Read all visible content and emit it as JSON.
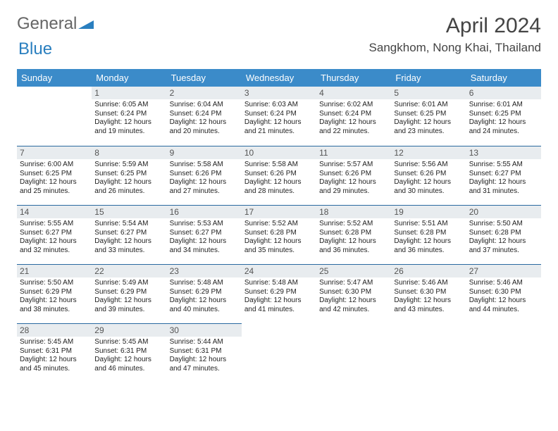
{
  "logo": {
    "part1": "General",
    "part2": "Blue"
  },
  "title": "April 2024",
  "location": "Sangkhom, Nong Khai, Thailand",
  "colors": {
    "header_bg": "#3b8bc9",
    "header_text": "#ffffff",
    "daynum_bg": "#e8ecef",
    "row_border": "#2a6aa0",
    "logo_blue": "#2a7fbf"
  },
  "weekdays": [
    "Sunday",
    "Monday",
    "Tuesday",
    "Wednesday",
    "Thursday",
    "Friday",
    "Saturday"
  ],
  "weeks": [
    [
      null,
      {
        "d": "1",
        "sr": "6:05 AM",
        "ss": "6:24 PM",
        "dl": "12 hours and 19 minutes."
      },
      {
        "d": "2",
        "sr": "6:04 AM",
        "ss": "6:24 PM",
        "dl": "12 hours and 20 minutes."
      },
      {
        "d": "3",
        "sr": "6:03 AM",
        "ss": "6:24 PM",
        "dl": "12 hours and 21 minutes."
      },
      {
        "d": "4",
        "sr": "6:02 AM",
        "ss": "6:24 PM",
        "dl": "12 hours and 22 minutes."
      },
      {
        "d": "5",
        "sr": "6:01 AM",
        "ss": "6:25 PM",
        "dl": "12 hours and 23 minutes."
      },
      {
        "d": "6",
        "sr": "6:01 AM",
        "ss": "6:25 PM",
        "dl": "12 hours and 24 minutes."
      }
    ],
    [
      {
        "d": "7",
        "sr": "6:00 AM",
        "ss": "6:25 PM",
        "dl": "12 hours and 25 minutes."
      },
      {
        "d": "8",
        "sr": "5:59 AM",
        "ss": "6:25 PM",
        "dl": "12 hours and 26 minutes."
      },
      {
        "d": "9",
        "sr": "5:58 AM",
        "ss": "6:26 PM",
        "dl": "12 hours and 27 minutes."
      },
      {
        "d": "10",
        "sr": "5:58 AM",
        "ss": "6:26 PM",
        "dl": "12 hours and 28 minutes."
      },
      {
        "d": "11",
        "sr": "5:57 AM",
        "ss": "6:26 PM",
        "dl": "12 hours and 29 minutes."
      },
      {
        "d": "12",
        "sr": "5:56 AM",
        "ss": "6:26 PM",
        "dl": "12 hours and 30 minutes."
      },
      {
        "d": "13",
        "sr": "5:55 AM",
        "ss": "6:27 PM",
        "dl": "12 hours and 31 minutes."
      }
    ],
    [
      {
        "d": "14",
        "sr": "5:55 AM",
        "ss": "6:27 PM",
        "dl": "12 hours and 32 minutes."
      },
      {
        "d": "15",
        "sr": "5:54 AM",
        "ss": "6:27 PM",
        "dl": "12 hours and 33 minutes."
      },
      {
        "d": "16",
        "sr": "5:53 AM",
        "ss": "6:27 PM",
        "dl": "12 hours and 34 minutes."
      },
      {
        "d": "17",
        "sr": "5:52 AM",
        "ss": "6:28 PM",
        "dl": "12 hours and 35 minutes."
      },
      {
        "d": "18",
        "sr": "5:52 AM",
        "ss": "6:28 PM",
        "dl": "12 hours and 36 minutes."
      },
      {
        "d": "19",
        "sr": "5:51 AM",
        "ss": "6:28 PM",
        "dl": "12 hours and 36 minutes."
      },
      {
        "d": "20",
        "sr": "5:50 AM",
        "ss": "6:28 PM",
        "dl": "12 hours and 37 minutes."
      }
    ],
    [
      {
        "d": "21",
        "sr": "5:50 AM",
        "ss": "6:29 PM",
        "dl": "12 hours and 38 minutes."
      },
      {
        "d": "22",
        "sr": "5:49 AM",
        "ss": "6:29 PM",
        "dl": "12 hours and 39 minutes."
      },
      {
        "d": "23",
        "sr": "5:48 AM",
        "ss": "6:29 PM",
        "dl": "12 hours and 40 minutes."
      },
      {
        "d": "24",
        "sr": "5:48 AM",
        "ss": "6:29 PM",
        "dl": "12 hours and 41 minutes."
      },
      {
        "d": "25",
        "sr": "5:47 AM",
        "ss": "6:30 PM",
        "dl": "12 hours and 42 minutes."
      },
      {
        "d": "26",
        "sr": "5:46 AM",
        "ss": "6:30 PM",
        "dl": "12 hours and 43 minutes."
      },
      {
        "d": "27",
        "sr": "5:46 AM",
        "ss": "6:30 PM",
        "dl": "12 hours and 44 minutes."
      }
    ],
    [
      {
        "d": "28",
        "sr": "5:45 AM",
        "ss": "6:31 PM",
        "dl": "12 hours and 45 minutes."
      },
      {
        "d": "29",
        "sr": "5:45 AM",
        "ss": "6:31 PM",
        "dl": "12 hours and 46 minutes."
      },
      {
        "d": "30",
        "sr": "5:44 AM",
        "ss": "6:31 PM",
        "dl": "12 hours and 47 minutes."
      },
      null,
      null,
      null,
      null
    ]
  ],
  "labels": {
    "sunrise": "Sunrise:",
    "sunset": "Sunset:",
    "daylight": "Daylight:"
  }
}
